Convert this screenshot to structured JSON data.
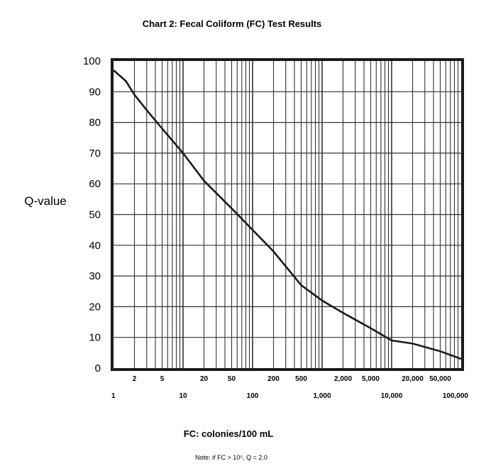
{
  "chart_data": {
    "type": "line",
    "title": "Chart 2: Fecal Coliform (FC) Test Results",
    "xlabel": "FC: colonies/100 mL",
    "ylabel": "Q-value",
    "note": "Note: if FC > 10⁵, Q = 2.0",
    "x_scale": "log",
    "xlim": [
      1,
      100000
    ],
    "ylim": [
      0,
      100
    ],
    "grid": true,
    "y_ticks": [
      "0",
      "10",
      "20",
      "30",
      "40",
      "50",
      "60",
      "70",
      "80",
      "90",
      "100"
    ],
    "x_major_ticks": [
      {
        "value": 1,
        "label": "1"
      },
      {
        "value": 10,
        "label": "10"
      },
      {
        "value": 100,
        "label": "100"
      },
      {
        "value": 1000,
        "label": "1,000"
      },
      {
        "value": 10000,
        "label": "10,000"
      },
      {
        "value": 100000,
        "label": "100,000"
      }
    ],
    "x_minor_ticks": [
      {
        "value": 2,
        "label": "2"
      },
      {
        "value": 5,
        "label": "5"
      },
      {
        "value": 20,
        "label": "20"
      },
      {
        "value": 50,
        "label": "50"
      },
      {
        "value": 200,
        "label": "200"
      },
      {
        "value": 500,
        "label": "500"
      },
      {
        "value": 2000,
        "label": "2,000"
      },
      {
        "value": 5000,
        "label": "5,000"
      },
      {
        "value": 20000,
        "label": "20,000"
      },
      {
        "value": 50000,
        "label": "50,000"
      }
    ],
    "series": [
      {
        "color": "#1a1a1a",
        "x": [
          1,
          1.5,
          2,
          3,
          5,
          10,
          20,
          50,
          100,
          200,
          500,
          1000,
          2000,
          5000,
          10000,
          20000,
          50000,
          100000
        ],
        "y": [
          97,
          93.5,
          89,
          84,
          78,
          70,
          61,
          52,
          45,
          38,
          27,
          22,
          18,
          13,
          9,
          8,
          5.5,
          3
        ]
      }
    ]
  }
}
